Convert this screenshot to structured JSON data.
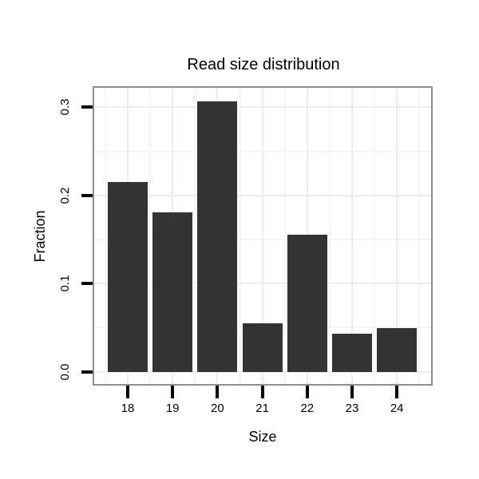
{
  "chart_data": {
    "type": "bar",
    "title": "Read size distribution",
    "xlabel": "Size",
    "ylabel": "Fraction",
    "categories": [
      "18",
      "19",
      "20",
      "21",
      "22",
      "23",
      "24"
    ],
    "values": [
      0.215,
      0.181,
      0.307,
      0.055,
      0.155,
      0.043,
      0.049
    ],
    "y_tick_labels": [
      "0.0",
      "0.1",
      "0.2",
      "0.3"
    ],
    "y_tick_values": [
      0.0,
      0.1,
      0.2,
      0.3
    ],
    "y_minor_values": [
      0.05,
      0.15,
      0.25
    ],
    "ylim": [
      -0.014,
      0.322
    ],
    "grid": "major and minor, horizontal and vertical",
    "legend_position": "none",
    "colors": {
      "bar_fill": "#333333",
      "panel_border": "#8e8e8e",
      "grid_major": "#ededed",
      "grid_minor": "#f6f6f6",
      "background": "#ffffff",
      "text": "#000000",
      "tick": "#000000"
    }
  }
}
